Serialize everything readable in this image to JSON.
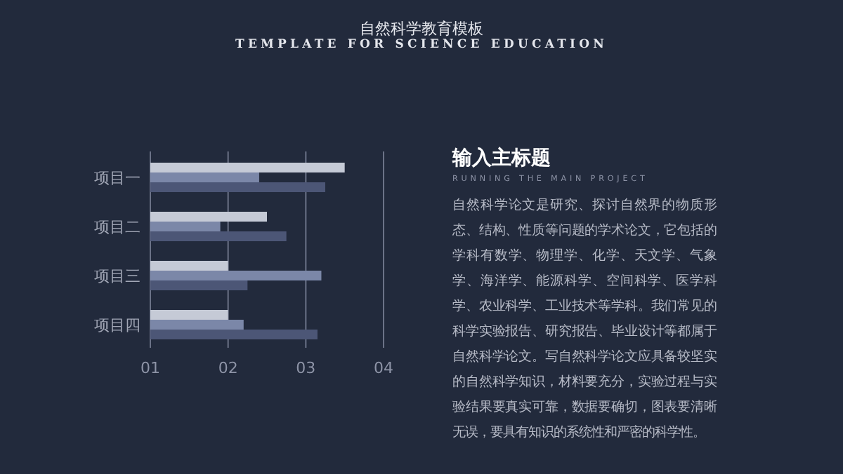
{
  "chart_data": {
    "type": "bar",
    "orientation": "horizontal",
    "title": "自然科学教育模板",
    "subtitle": "TEMPLATE FOR SCIENCE EDUCATION",
    "categories": [
      "项目一",
      "项目二",
      "项目三",
      "项目四"
    ],
    "series": [
      {
        "color": "#c5cad6",
        "values": [
          3.5,
          2.5,
          2.0,
          2.0
        ]
      },
      {
        "color": "#7b87a8",
        "values": [
          2.4,
          1.9,
          3.2,
          2.2
        ]
      },
      {
        "color": "#4c5676",
        "values": [
          3.25,
          2.75,
          2.25,
          3.15
        ]
      }
    ],
    "xlim": [
      1,
      4
    ],
    "xticks": [
      {
        "value": 1,
        "label": "01"
      },
      {
        "value": 2,
        "label": "02"
      },
      {
        "value": 3,
        "label": "03"
      },
      {
        "value": 4,
        "label": "04"
      }
    ],
    "grid": "x",
    "annotations": [
      "输入主标题",
      "RUNNING THE MAIN PROJECT",
      "自然科学论文是研究、探讨自然界的物质形态、结构、性质等问题的学术论文，它包括的学科有数学、物理学、化学、天文学、气象学、海洋学、能源科学、空间科学、医学科学、农业科学、工业技术等学科。我们常见的科学实验报告、研究报告、毕业设计等都属于自然科学论文。写自然科学论文应具备较坚实的自然科学知识，材料要充分，实验过程与实验结果要真实可靠，数据要确切，图表要清晰无误，要具有知识的系统性和严密的科学性。"
    ]
  }
}
